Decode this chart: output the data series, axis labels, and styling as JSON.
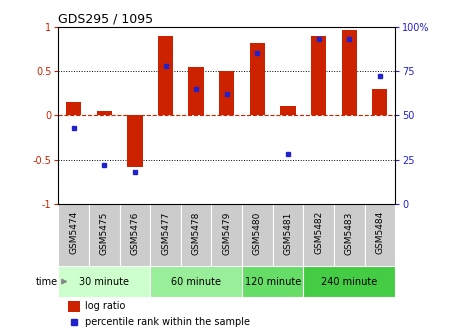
{
  "title": "GDS295 / 1095",
  "samples": [
    "GSM5474",
    "GSM5475",
    "GSM5476",
    "GSM5477",
    "GSM5478",
    "GSM5479",
    "GSM5480",
    "GSM5481",
    "GSM5482",
    "GSM5483",
    "GSM5484"
  ],
  "log_ratio": [
    0.15,
    0.05,
    -0.58,
    0.9,
    0.55,
    0.5,
    0.82,
    0.1,
    0.9,
    0.97,
    0.3
  ],
  "percentile": [
    43,
    22,
    18,
    78,
    65,
    62,
    85,
    28,
    93,
    93,
    72
  ],
  "bar_color": "#cc2200",
  "dot_color": "#2222cc",
  "ylim": [
    -1,
    1
  ],
  "yticks_left": [
    -1,
    -0.5,
    0,
    0.5,
    1
  ],
  "ytick_labels_left": [
    "-1",
    "-0.5",
    "0",
    "0.5",
    "1"
  ],
  "right_tick_pct": [
    0,
    25,
    50,
    75,
    100
  ],
  "ytick_labels_right": [
    "0",
    "25",
    "50",
    "75",
    "100%"
  ],
  "hlines": [
    -0.5,
    0.0,
    0.5
  ],
  "time_groups": [
    {
      "label": "30 minute",
      "start": 0,
      "end": 3,
      "color": "#ccffcc"
    },
    {
      "label": "60 minute",
      "start": 3,
      "end": 6,
      "color": "#99ee99"
    },
    {
      "label": "120 minute",
      "start": 6,
      "end": 8,
      "color": "#66dd66"
    },
    {
      "label": "240 minute",
      "start": 8,
      "end": 11,
      "color": "#44cc44"
    }
  ],
  "legend_bar_label": "log ratio",
  "legend_dot_label": "percentile rank within the sample",
  "time_label": "time",
  "bg_color": "#ffffff",
  "bar_width": 0.5,
  "xlabel_bg": "#cccccc"
}
